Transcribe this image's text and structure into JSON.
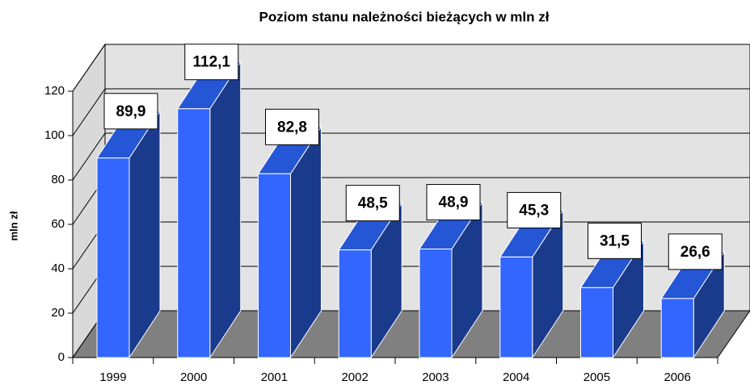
{
  "chart_data": {
    "type": "bar3d",
    "title": "Poziom stanu należności bieżących w mln zł",
    "y_label": "mln zł",
    "categories": [
      "1999",
      "2000",
      "2001",
      "2002",
      "2003",
      "2004",
      "2005",
      "2006"
    ],
    "values": [
      89.9,
      112.1,
      82.8,
      48.5,
      48.9,
      45.3,
      31.5,
      26.6
    ],
    "value_labels": [
      "89,9",
      "112,1",
      "82,8",
      "48,5",
      "48,9",
      "45,3",
      "31,5",
      "26,6"
    ],
    "color": "#3366ff",
    "ylim": [
      0,
      120
    ],
    "yticks": [
      0,
      20,
      40,
      60,
      80,
      100,
      120
    ],
    "grid": true
  }
}
